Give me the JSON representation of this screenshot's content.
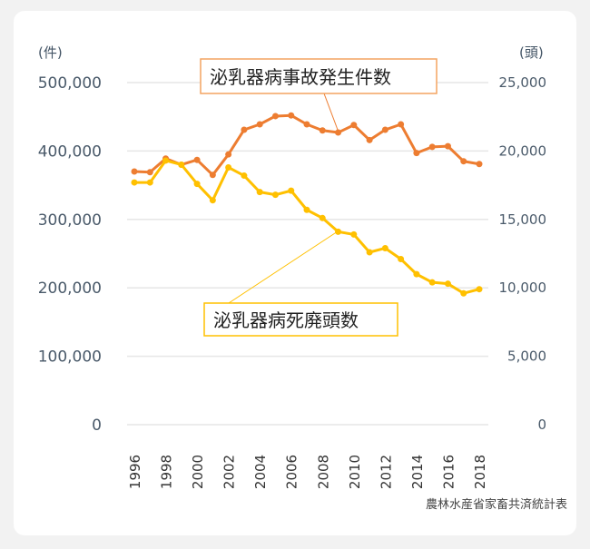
{
  "chart_data": {
    "type": "line",
    "title": "",
    "x": [
      1996,
      1997,
      1998,
      1999,
      2000,
      2001,
      2002,
      2003,
      2004,
      2005,
      2006,
      2007,
      2008,
      2009,
      2010,
      2011,
      2012,
      2013,
      2014,
      2015,
      2016,
      2017,
      2018
    ],
    "x_tick_labels": [
      "1996",
      "1998",
      "2000",
      "2002",
      "2004",
      "2006",
      "2008",
      "2010",
      "2012",
      "2014",
      "2016",
      "2018"
    ],
    "series": [
      {
        "name": "泌乳器病事故発生件数",
        "axis": "left",
        "color": "#ED7D31",
        "values": [
          370000,
          369000,
          389000,
          380000,
          387000,
          365000,
          395000,
          431000,
          439000,
          451000,
          452000,
          439000,
          430000,
          427000,
          438000,
          416000,
          431000,
          439000,
          397000,
          406000,
          407000,
          385000,
          381000
        ]
      },
      {
        "name": "泌乳器病死廃頭数",
        "axis": "right",
        "color": "#FFC000",
        "values": [
          17700,
          17700,
          19300,
          19000,
          17600,
          16400,
          18800,
          18200,
          17000,
          16800,
          17100,
          15700,
          15100,
          14100,
          13900,
          12600,
          12900,
          12100,
          11000,
          10400,
          10300,
          9600,
          9900
        ]
      }
    ],
    "left_axis": {
      "unit": "(件)",
      "ylim": [
        0,
        500000
      ],
      "ticks": [
        "0",
        "100,000",
        "200,000",
        "300,000",
        "400,000",
        "500,000"
      ]
    },
    "right_axis": {
      "unit": "(頭)",
      "ylim": [
        0,
        25000
      ],
      "ticks": [
        "0",
        "5,000",
        "10,000",
        "15,000",
        "20,000",
        "25,000"
      ]
    },
    "grid": true,
    "annotations": [
      {
        "text": "泌乳器病事故発生件数",
        "points_to": 2009,
        "series": 0
      },
      {
        "text": "泌乳器病死廃頭数",
        "points_to": 2009,
        "series": 1
      }
    ],
    "source": "農林水産省家畜共済統計表"
  }
}
